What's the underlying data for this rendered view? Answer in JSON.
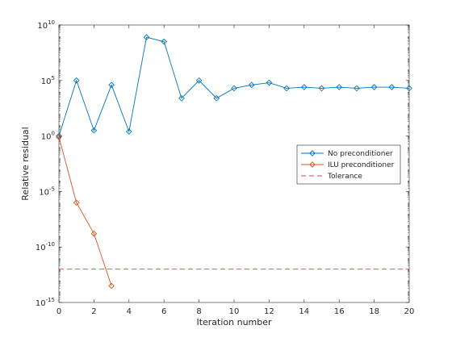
{
  "chart_data": {
    "type": "line",
    "title": "",
    "xlabel": "Iteration number",
    "ylabel": "Relative residual",
    "xlim": [
      0,
      20
    ],
    "ylim_log10": [
      -15,
      10
    ],
    "yscale": "log",
    "grid": false,
    "legend_placement": "right",
    "x_ticks": [
      "0",
      "2",
      "4",
      "6",
      "8",
      "10",
      "12",
      "14",
      "16",
      "18",
      "20"
    ],
    "y_ticks": [
      {
        "base": "10",
        "exp": "-15",
        "value_log10": -15
      },
      {
        "base": "10",
        "exp": "-10",
        "value_log10": -10
      },
      {
        "base": "10",
        "exp": "-5",
        "value_log10": -5
      },
      {
        "base": "10",
        "exp": "0",
        "value_log10": 0
      },
      {
        "base": "10",
        "exp": "5",
        "value_log10": 5
      },
      {
        "base": "10",
        "exp": "10",
        "value_log10": 10
      }
    ],
    "series": [
      {
        "name": "No preconditioner",
        "color": "#0072BD",
        "marker": "diamond",
        "line": "solid",
        "x": [
          0,
          1,
          2,
          3,
          4,
          5,
          6,
          7,
          8,
          9,
          10,
          11,
          12,
          13,
          14,
          15,
          16,
          17,
          18,
          19,
          20
        ],
        "y_log10": [
          0.0,
          5.0,
          0.5,
          4.6,
          0.4,
          8.9,
          8.5,
          3.4,
          5.0,
          3.4,
          4.3,
          4.6,
          4.8,
          4.3,
          4.4,
          4.3,
          4.4,
          4.3,
          4.4,
          4.4,
          4.3
        ]
      },
      {
        "name": "ILU preconditioner",
        "color": "#D95319",
        "marker": "diamond",
        "line": "solid",
        "x": [
          0,
          1,
          2,
          3
        ],
        "y_log10": [
          -0.1,
          -6.0,
          -8.8,
          -13.5
        ]
      },
      {
        "name": "Tolerance",
        "color": "#E04040",
        "marker": "none",
        "line": "dashed",
        "x": [
          0,
          20
        ],
        "y_log10": [
          -12.0,
          -12.0
        ]
      }
    ]
  }
}
